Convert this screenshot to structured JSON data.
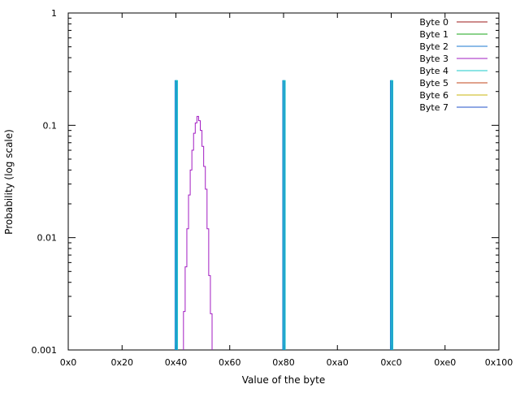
{
  "chart_data": {
    "type": "line",
    "title": "",
    "xlabel": "Value of the byte",
    "ylabel": "Probability (log scale)",
    "xlim": [
      0,
      256
    ],
    "ylim": [
      0.001,
      1
    ],
    "yscale": "log",
    "grid": false,
    "legend_position": "top-right",
    "x_ticks": [
      {
        "value": 0,
        "label": "0x0"
      },
      {
        "value": 32,
        "label": "0x20"
      },
      {
        "value": 64,
        "label": "0x40"
      },
      {
        "value": 96,
        "label": "0x60"
      },
      {
        "value": 128,
        "label": "0x80"
      },
      {
        "value": 160,
        "label": "0xa0"
      },
      {
        "value": 192,
        "label": "0xc0"
      },
      {
        "value": 224,
        "label": "0xe0"
      },
      {
        "value": 256,
        "label": "0x100"
      }
    ],
    "y_ticks": [
      {
        "value": 0.001,
        "label": "0.001"
      },
      {
        "value": 0.01,
        "label": "0.01"
      },
      {
        "value": 0.1,
        "label": "0.1"
      },
      {
        "value": 1,
        "label": "1"
      }
    ],
    "series": [
      {
        "name": "Byte 0",
        "color": "#9c1a1a",
        "points": []
      },
      {
        "name": "Byte 1",
        "color": "#18a518",
        "points": []
      },
      {
        "name": "Byte 2",
        "color": "#1b7ad1",
        "points": [
          {
            "x": 64,
            "y": 0.25
          },
          {
            "x": 128,
            "y": 0.25
          },
          {
            "x": 192,
            "y": 0.25
          }
        ]
      },
      {
        "name": "Byte 3",
        "color": "#a21cc2",
        "points": [
          {
            "x": 69,
            "y": 0.0022
          },
          {
            "x": 70,
            "y": 0.0055
          },
          {
            "x": 71,
            "y": 0.012
          },
          {
            "x": 72,
            "y": 0.024
          },
          {
            "x": 73,
            "y": 0.04
          },
          {
            "x": 74,
            "y": 0.06
          },
          {
            "x": 75,
            "y": 0.085
          },
          {
            "x": 76,
            "y": 0.105
          },
          {
            "x": 77,
            "y": 0.12
          },
          {
            "x": 78,
            "y": 0.11
          },
          {
            "x": 79,
            "y": 0.09
          },
          {
            "x": 80,
            "y": 0.065
          },
          {
            "x": 81,
            "y": 0.043
          },
          {
            "x": 82,
            "y": 0.027
          },
          {
            "x": 83,
            "y": 0.012
          },
          {
            "x": 84,
            "y": 0.0046
          },
          {
            "x": 85,
            "y": 0.0021
          }
        ]
      },
      {
        "name": "Byte 4",
        "color": "#18c9c9",
        "points": [
          {
            "x": 64,
            "y": 0.25
          },
          {
            "x": 128,
            "y": 0.25
          },
          {
            "x": 192,
            "y": 0.25
          }
        ]
      },
      {
        "name": "Byte 5",
        "color": "#c2461a",
        "points": []
      },
      {
        "name": "Byte 6",
        "color": "#c9b40c",
        "points": []
      },
      {
        "name": "Byte 7",
        "color": "#2150c9",
        "points": []
      }
    ]
  }
}
